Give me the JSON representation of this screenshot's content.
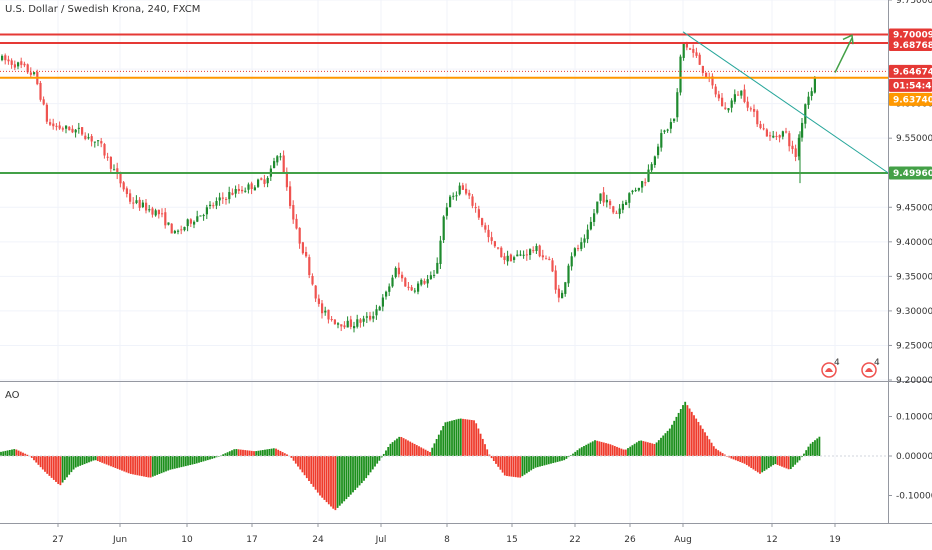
{
  "title": "U.S. Dollar / Swedish Krona, 240, FXCM",
  "indicator_label": "AO",
  "colors": {
    "up": "#26a69a",
    "up_fill": "#1e8a2e",
    "down": "#ef5350",
    "ao_up": "#1b8f1b",
    "ao_down": "#ef3b2c",
    "red_line": "#e53935",
    "orange_line": "#ff9800",
    "green_line": "#43a047",
    "trend_line": "#26a69a",
    "arrow": "#43a047"
  },
  "price_axis": {
    "ticks": [
      "9.75000",
      "9.70000",
      "9.65000",
      "9.60000",
      "9.55000",
      "9.50000",
      "9.45000",
      "9.40000",
      "9.35000",
      "9.30000",
      "9.25000",
      "9.20000"
    ]
  },
  "ao_axis": {
    "ticks": [
      "0.10000",
      "0.00000",
      "-0.10000"
    ]
  },
  "time_axis": {
    "ticks": [
      "27",
      "Jun",
      "10",
      "17",
      "24",
      "Jul",
      "8",
      "15",
      "22",
      "26",
      "Aug",
      "12",
      "19"
    ]
  },
  "price_tags": {
    "r1": "9.70009",
    "r2": "9.68768",
    "last": "9.64674",
    "countdown": "01:54:48",
    "orange": "9.63740",
    "green": "9.49960"
  },
  "chart_data": {
    "type": "candlestick",
    "timeframe": "240",
    "symbol": "USDSEK",
    "ylim": [
      9.2,
      9.75
    ],
    "horizontal_levels": [
      {
        "price": 9.70009,
        "color": "red"
      },
      {
        "price": 9.68768,
        "color": "red"
      },
      {
        "price": 9.6374,
        "color": "orange"
      },
      {
        "price": 9.4996,
        "color": "green"
      }
    ],
    "last_price": 9.64674,
    "path": [
      [
        0,
        9.665
      ],
      [
        20,
        9.655
      ],
      [
        35,
        9.64
      ],
      [
        48,
        9.57
      ],
      [
        60,
        9.565
      ],
      [
        80,
        9.56
      ],
      [
        100,
        9.54
      ],
      [
        115,
        9.5
      ],
      [
        130,
        9.46
      ],
      [
        145,
        9.45
      ],
      [
        160,
        9.44
      ],
      [
        175,
        9.41
      ],
      [
        190,
        9.43
      ],
      [
        210,
        9.45
      ],
      [
        230,
        9.47
      ],
      [
        250,
        9.48
      ],
      [
        265,
        9.49
      ],
      [
        280,
        9.53
      ],
      [
        295,
        9.42
      ],
      [
        305,
        9.38
      ],
      [
        320,
        9.3
      ],
      [
        335,
        9.285
      ],
      [
        350,
        9.28
      ],
      [
        370,
        9.29
      ],
      [
        385,
        9.32
      ],
      [
        395,
        9.36
      ],
      [
        410,
        9.33
      ],
      [
        420,
        9.34
      ],
      [
        435,
        9.35
      ],
      [
        445,
        9.45
      ],
      [
        460,
        9.48
      ],
      [
        475,
        9.45
      ],
      [
        490,
        9.4
      ],
      [
        505,
        9.375
      ],
      [
        520,
        9.38
      ],
      [
        535,
        9.39
      ],
      [
        550,
        9.37
      ],
      [
        560,
        9.31
      ],
      [
        570,
        9.38
      ],
      [
        585,
        9.4
      ],
      [
        600,
        9.47
      ],
      [
        615,
        9.44
      ],
      [
        630,
        9.47
      ],
      [
        645,
        9.49
      ],
      [
        660,
        9.55
      ],
      [
        675,
        9.58
      ],
      [
        682,
        9.69
      ],
      [
        695,
        9.67
      ],
      [
        710,
        9.63
      ],
      [
        725,
        9.59
      ],
      [
        740,
        9.62
      ],
      [
        755,
        9.58
      ],
      [
        770,
        9.55
      ],
      [
        785,
        9.56
      ],
      [
        795,
        9.52
      ],
      [
        805,
        9.6
      ],
      [
        818,
        9.645
      ]
    ],
    "ao_path": [
      [
        0,
        0.01
      ],
      [
        15,
        0.018
      ],
      [
        30,
        0.0
      ],
      [
        45,
        -0.04
      ],
      [
        60,
        -0.075
      ],
      [
        75,
        -0.03
      ],
      [
        95,
        -0.01
      ],
      [
        115,
        -0.03
      ],
      [
        130,
        -0.045
      ],
      [
        150,
        -0.055
      ],
      [
        170,
        -0.035
      ],
      [
        195,
        -0.02
      ],
      [
        215,
        -0.005
      ],
      [
        235,
        0.018
      ],
      [
        255,
        0.012
      ],
      [
        275,
        0.02
      ],
      [
        290,
        0.0
      ],
      [
        305,
        -0.05
      ],
      [
        320,
        -0.1
      ],
      [
        335,
        -0.138
      ],
      [
        350,
        -0.1
      ],
      [
        365,
        -0.06
      ],
      [
        380,
        -0.01
      ],
      [
        390,
        0.03
      ],
      [
        400,
        0.05
      ],
      [
        415,
        0.03
      ],
      [
        430,
        0.01
      ],
      [
        445,
        0.085
      ],
      [
        460,
        0.095
      ],
      [
        475,
        0.09
      ],
      [
        490,
        0.0
      ],
      [
        505,
        -0.05
      ],
      [
        520,
        -0.055
      ],
      [
        535,
        -0.03
      ],
      [
        550,
        -0.02
      ],
      [
        565,
        -0.01
      ],
      [
        580,
        0.02
      ],
      [
        595,
        0.04
      ],
      [
        610,
        0.03
      ],
      [
        625,
        0.015
      ],
      [
        640,
        0.04
      ],
      [
        655,
        0.03
      ],
      [
        670,
        0.07
      ],
      [
        685,
        0.138
      ],
      [
        700,
        0.08
      ],
      [
        715,
        0.02
      ],
      [
        730,
        -0.005
      ],
      [
        745,
        -0.02
      ],
      [
        760,
        -0.045
      ],
      [
        775,
        -0.02
      ],
      [
        790,
        -0.035
      ],
      [
        800,
        -0.01
      ],
      [
        810,
        0.03
      ],
      [
        820,
        0.05
      ]
    ]
  }
}
